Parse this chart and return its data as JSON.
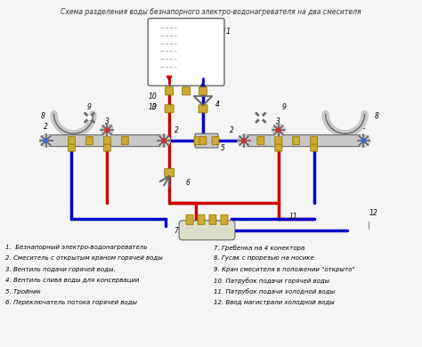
{
  "title": "Схема разделения воды безнапорного электро-водонагревателя на два смесителя",
  "bg_color": "#f5f5f5",
  "red_color": "#cc0000",
  "blue_color": "#0000cc",
  "dark_gray": "#666666",
  "gold_color": "#ccaa33",
  "light_gray": "#c8c8c8",
  "pipe_lw": 2.5,
  "legend_items_left": [
    "1.  Безнапорный электро-водонагреватель",
    "2. Смеситель с открытым краном горячей воды",
    "3. Вентиль подачи горячей воды.",
    "4. Вентиль слива воды для консервации",
    "5. Тройник",
    "6. Переключатель потока горячей воды"
  ],
  "legend_items_right": [
    "7. Гребенка на 4 конектора",
    "8. Гусак с прорезью на носике",
    "9. Кран смесителя в положении \"открыто\"",
    "10. Патрубок подачи горячей воды",
    "11. Патрубок подачи холодной воды",
    "12. Ввод магистрали холодной воды"
  ]
}
